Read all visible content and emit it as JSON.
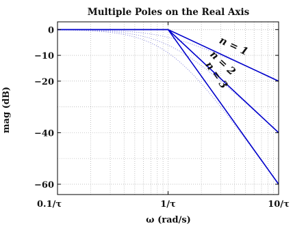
{
  "chart_data": {
    "type": "line",
    "title": "Multiple Poles on the Real Axis",
    "xlabel": "ω (rad/s)",
    "ylabel": "mag (dB)",
    "xscale": "log",
    "xlim": [
      0.1,
      10
    ],
    "ylim": [
      -64,
      3
    ],
    "grid": true,
    "xticks": [
      {
        "value": 0.1,
        "label": "0.1/τ"
      },
      {
        "value": 1,
        "label": "1/τ"
      },
      {
        "value": 10,
        "label": "10/τ"
      }
    ],
    "yticks": [
      {
        "value": 0,
        "label": "0"
      },
      {
        "value": -10,
        "label": "−10"
      },
      {
        "value": -20,
        "label": "−20"
      },
      {
        "value": -40,
        "label": "−40"
      },
      {
        "value": -60,
        "label": "−60"
      }
    ],
    "series": [
      {
        "name": "n = 1",
        "style": "asymptote",
        "color": "#0000cc",
        "x": [
          0.1,
          1,
          10
        ],
        "y": [
          0,
          0,
          -20
        ]
      },
      {
        "name": "n = 2",
        "style": "asymptote",
        "color": "#0000cc",
        "x": [
          0.1,
          1,
          10
        ],
        "y": [
          0,
          0,
          -40
        ]
      },
      {
        "name": "n = 3",
        "style": "asymptote",
        "color": "#0000cc",
        "x": [
          0.1,
          1,
          10
        ],
        "y": [
          0,
          0,
          -60
        ]
      },
      {
        "name": "n = 1",
        "style": "exact",
        "color": "#8888dd",
        "order": 1
      },
      {
        "name": "n = 2",
        "style": "exact",
        "color": "#8888dd",
        "order": 2
      },
      {
        "name": "n = 3",
        "style": "exact",
        "color": "#8888dd",
        "order": 3
      }
    ],
    "annotations": [
      {
        "text": "n = 1",
        "series": 0
      },
      {
        "text": "n = 2",
        "series": 1
      },
      {
        "text": "n = 3",
        "series": 2
      }
    ]
  }
}
